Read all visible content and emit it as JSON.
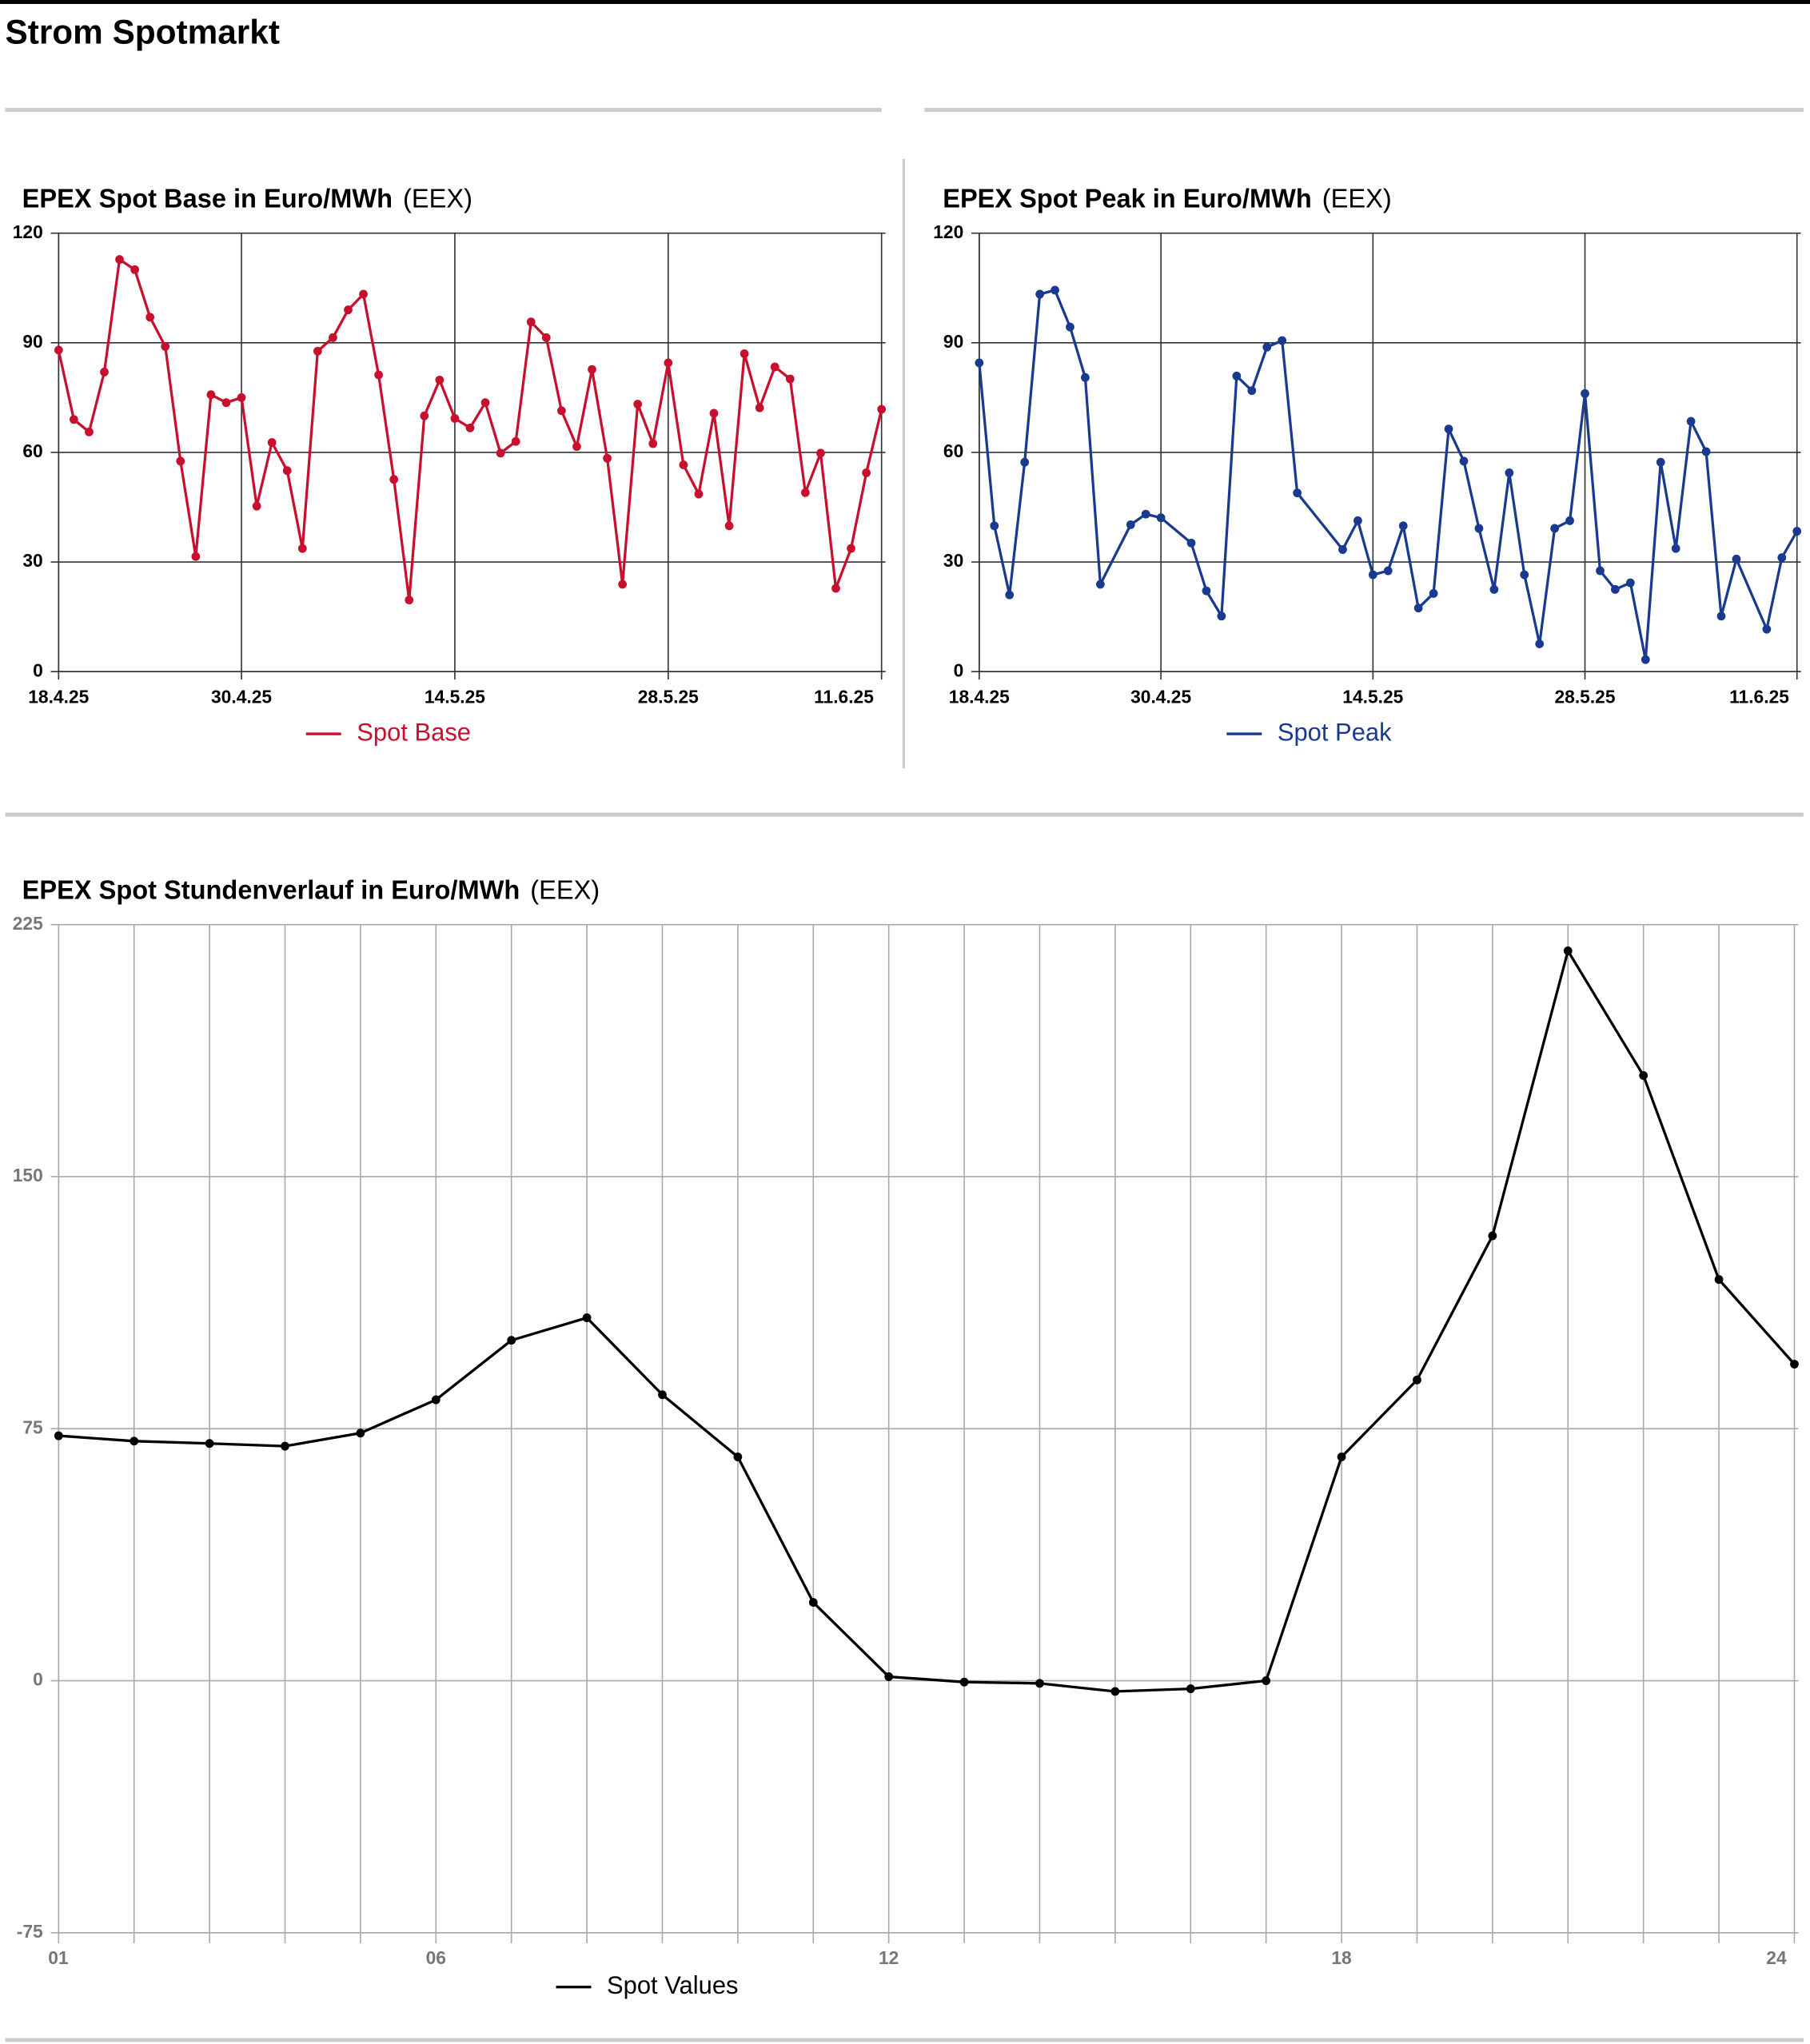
{
  "title": "Strom Spotmarkt",
  "chart_data": [
    {
      "type": "line",
      "title": "EPEX Spot Base in Euro/MWh",
      "source": "(EEX)",
      "x": [
        "18.4.25",
        "19.4.25",
        "20.4.25",
        "21.4.25",
        "22.4.25",
        "23.4.25",
        "24.4.25",
        "25.4.25",
        "26.4.25",
        "27.4.25",
        "28.4.25",
        "29.4.25",
        "30.4.25",
        "1.5.25",
        "2.5.25",
        "3.5.25",
        "4.5.25",
        "5.5.25",
        "6.5.25",
        "7.5.25",
        "8.5.25",
        "9.5.25",
        "10.5.25",
        "11.5.25",
        "12.5.25",
        "13.5.25",
        "14.5.25",
        "15.5.25",
        "16.5.25",
        "17.5.25",
        "18.5.25",
        "19.5.25",
        "20.5.25",
        "21.5.25",
        "22.5.25",
        "23.5.25",
        "24.5.25",
        "25.5.25",
        "26.5.25",
        "27.5.25",
        "28.5.25",
        "29.5.25",
        "30.5.25",
        "31.5.25",
        "1.6.25",
        "2.6.25",
        "3.6.25",
        "4.6.25",
        "5.6.25",
        "6.6.25",
        "7.6.25",
        "8.6.25",
        "9.6.25",
        "10.6.25",
        "11.6.25"
      ],
      "series": [
        {
          "name": "Spot Base",
          "color": "#c8102e",
          "values": [
            88,
            69,
            65.6,
            82,
            112.8,
            110,
            97,
            89,
            57.6,
            31.5,
            75.8,
            73.6,
            75,
            45.3,
            62.7,
            55,
            33.7,
            87.7,
            91.4,
            99,
            103.3,
            81.2,
            52.6,
            19.6,
            70,
            79.8,
            69.3,
            66.7,
            73.6,
            59.8,
            63,
            95.7,
            91.4,
            71.4,
            61.6,
            82.7,
            58.4,
            23.9,
            73.2,
            62.4,
            84.5,
            56.6,
            48.6,
            70.7,
            39.9,
            87,
            72.2,
            83.4,
            80.1,
            49,
            59.8,
            22.8,
            33.7,
            54.4,
            71.8
          ]
        }
      ],
      "xlim": [
        "18.4.25",
        "11.6.25"
      ],
      "xticks": [
        "18.4.25",
        "30.4.25",
        "14.5.25",
        "28.5.25",
        "11.6.25"
      ],
      "ylim": [
        0,
        120
      ],
      "yticks": [
        0,
        30,
        60,
        90,
        120
      ],
      "grid": true
    },
    {
      "type": "line",
      "title": "EPEX Spot Peak in Euro/MWh",
      "source": "(EEX)",
      "x": [
        "18.4.25",
        "19.4.25",
        "20.4.25",
        "21.4.25",
        "22.4.25",
        "23.4.25",
        "24.4.25",
        "25.4.25",
        "26.4.25",
        "28.4.25",
        "29.4.25",
        "30.4.25",
        "2.5.25",
        "3.5.25",
        "4.5.25",
        "5.5.25",
        "6.5.25",
        "7.5.25",
        "8.5.25",
        "9.5.25",
        "12.5.25",
        "13.5.25",
        "14.5.25",
        "15.5.25",
        "16.5.25",
        "17.5.25",
        "18.5.25",
        "19.5.25",
        "20.5.25",
        "21.5.25",
        "22.5.25",
        "23.5.25",
        "24.5.25",
        "25.5.25",
        "26.5.25",
        "27.5.25",
        "28.5.25",
        "29.5.25",
        "30.5.25",
        "31.5.25",
        "1.6.25",
        "2.6.25",
        "3.6.25",
        "4.6.25",
        "5.6.25",
        "6.6.25",
        "7.6.25",
        "9.6.25",
        "10.6.25",
        "11.6.25"
      ],
      "series": [
        {
          "name": "Spot Peak",
          "color": "#1a3a8f",
          "values": [
            84.5,
            39.9,
            21,
            57.3,
            103.3,
            104.4,
            94.3,
            80.5,
            23.9,
            40.2,
            43.1,
            42.1,
            35.2,
            22.1,
            15.2,
            80.9,
            76.9,
            88.8,
            90.6,
            48.9,
            33.4,
            41.3,
            26.5,
            27.6,
            39.9,
            17.4,
            21.4,
            66.4,
            57.6,
            39.2,
            22.5,
            54.4,
            26.5,
            7.6,
            39.2,
            41.3,
            76.1,
            27.6,
            22.5,
            24.3,
            3.3,
            57.3,
            33.7,
            68.5,
            60.2,
            15.2,
            30.8,
            11.6,
            31.2,
            38.4
          ]
        }
      ],
      "xlim": [
        "18.4.25",
        "11.6.25"
      ],
      "xticks": [
        "18.4.25",
        "30.4.25",
        "14.5.25",
        "28.5.25",
        "11.6.25"
      ],
      "ylim": [
        0,
        120
      ],
      "yticks": [
        0,
        30,
        60,
        90,
        120
      ],
      "grid": true
    },
    {
      "type": "line",
      "title": "EPEX Spot Stundenverlauf in Euro/MWh",
      "source": "(EEX)",
      "x": [
        1,
        2,
        3,
        4,
        5,
        6,
        7,
        8,
        9,
        10,
        11,
        12,
        13,
        14,
        15,
        16,
        17,
        18,
        19,
        20,
        21,
        22,
        23,
        24
      ],
      "series": [
        {
          "name": "Spot Values",
          "color": "#000000",
          "values": [
            72.9,
            71.3,
            70.6,
            69.8,
            73.7,
            83.6,
            101.3,
            108,
            85.1,
            66.6,
            23.3,
            1.2,
            -0.4,
            -0.8,
            -3.2,
            -2.4,
            0,
            66.6,
            89.5,
            132.4,
            217.2,
            180.1,
            119.4,
            94.2
          ]
        }
      ],
      "xlim": [
        1,
        24
      ],
      "xticks": [
        {
          "value": 1,
          "label": "01"
        },
        {
          "value": 6,
          "label": "06"
        },
        {
          "value": 12,
          "label": "12"
        },
        {
          "value": 18,
          "label": "18"
        },
        {
          "value": 24,
          "label": "24"
        }
      ],
      "ylim": [
        -75,
        225
      ],
      "yticks": [
        -75,
        0,
        75,
        150,
        225
      ],
      "grid": true
    }
  ]
}
